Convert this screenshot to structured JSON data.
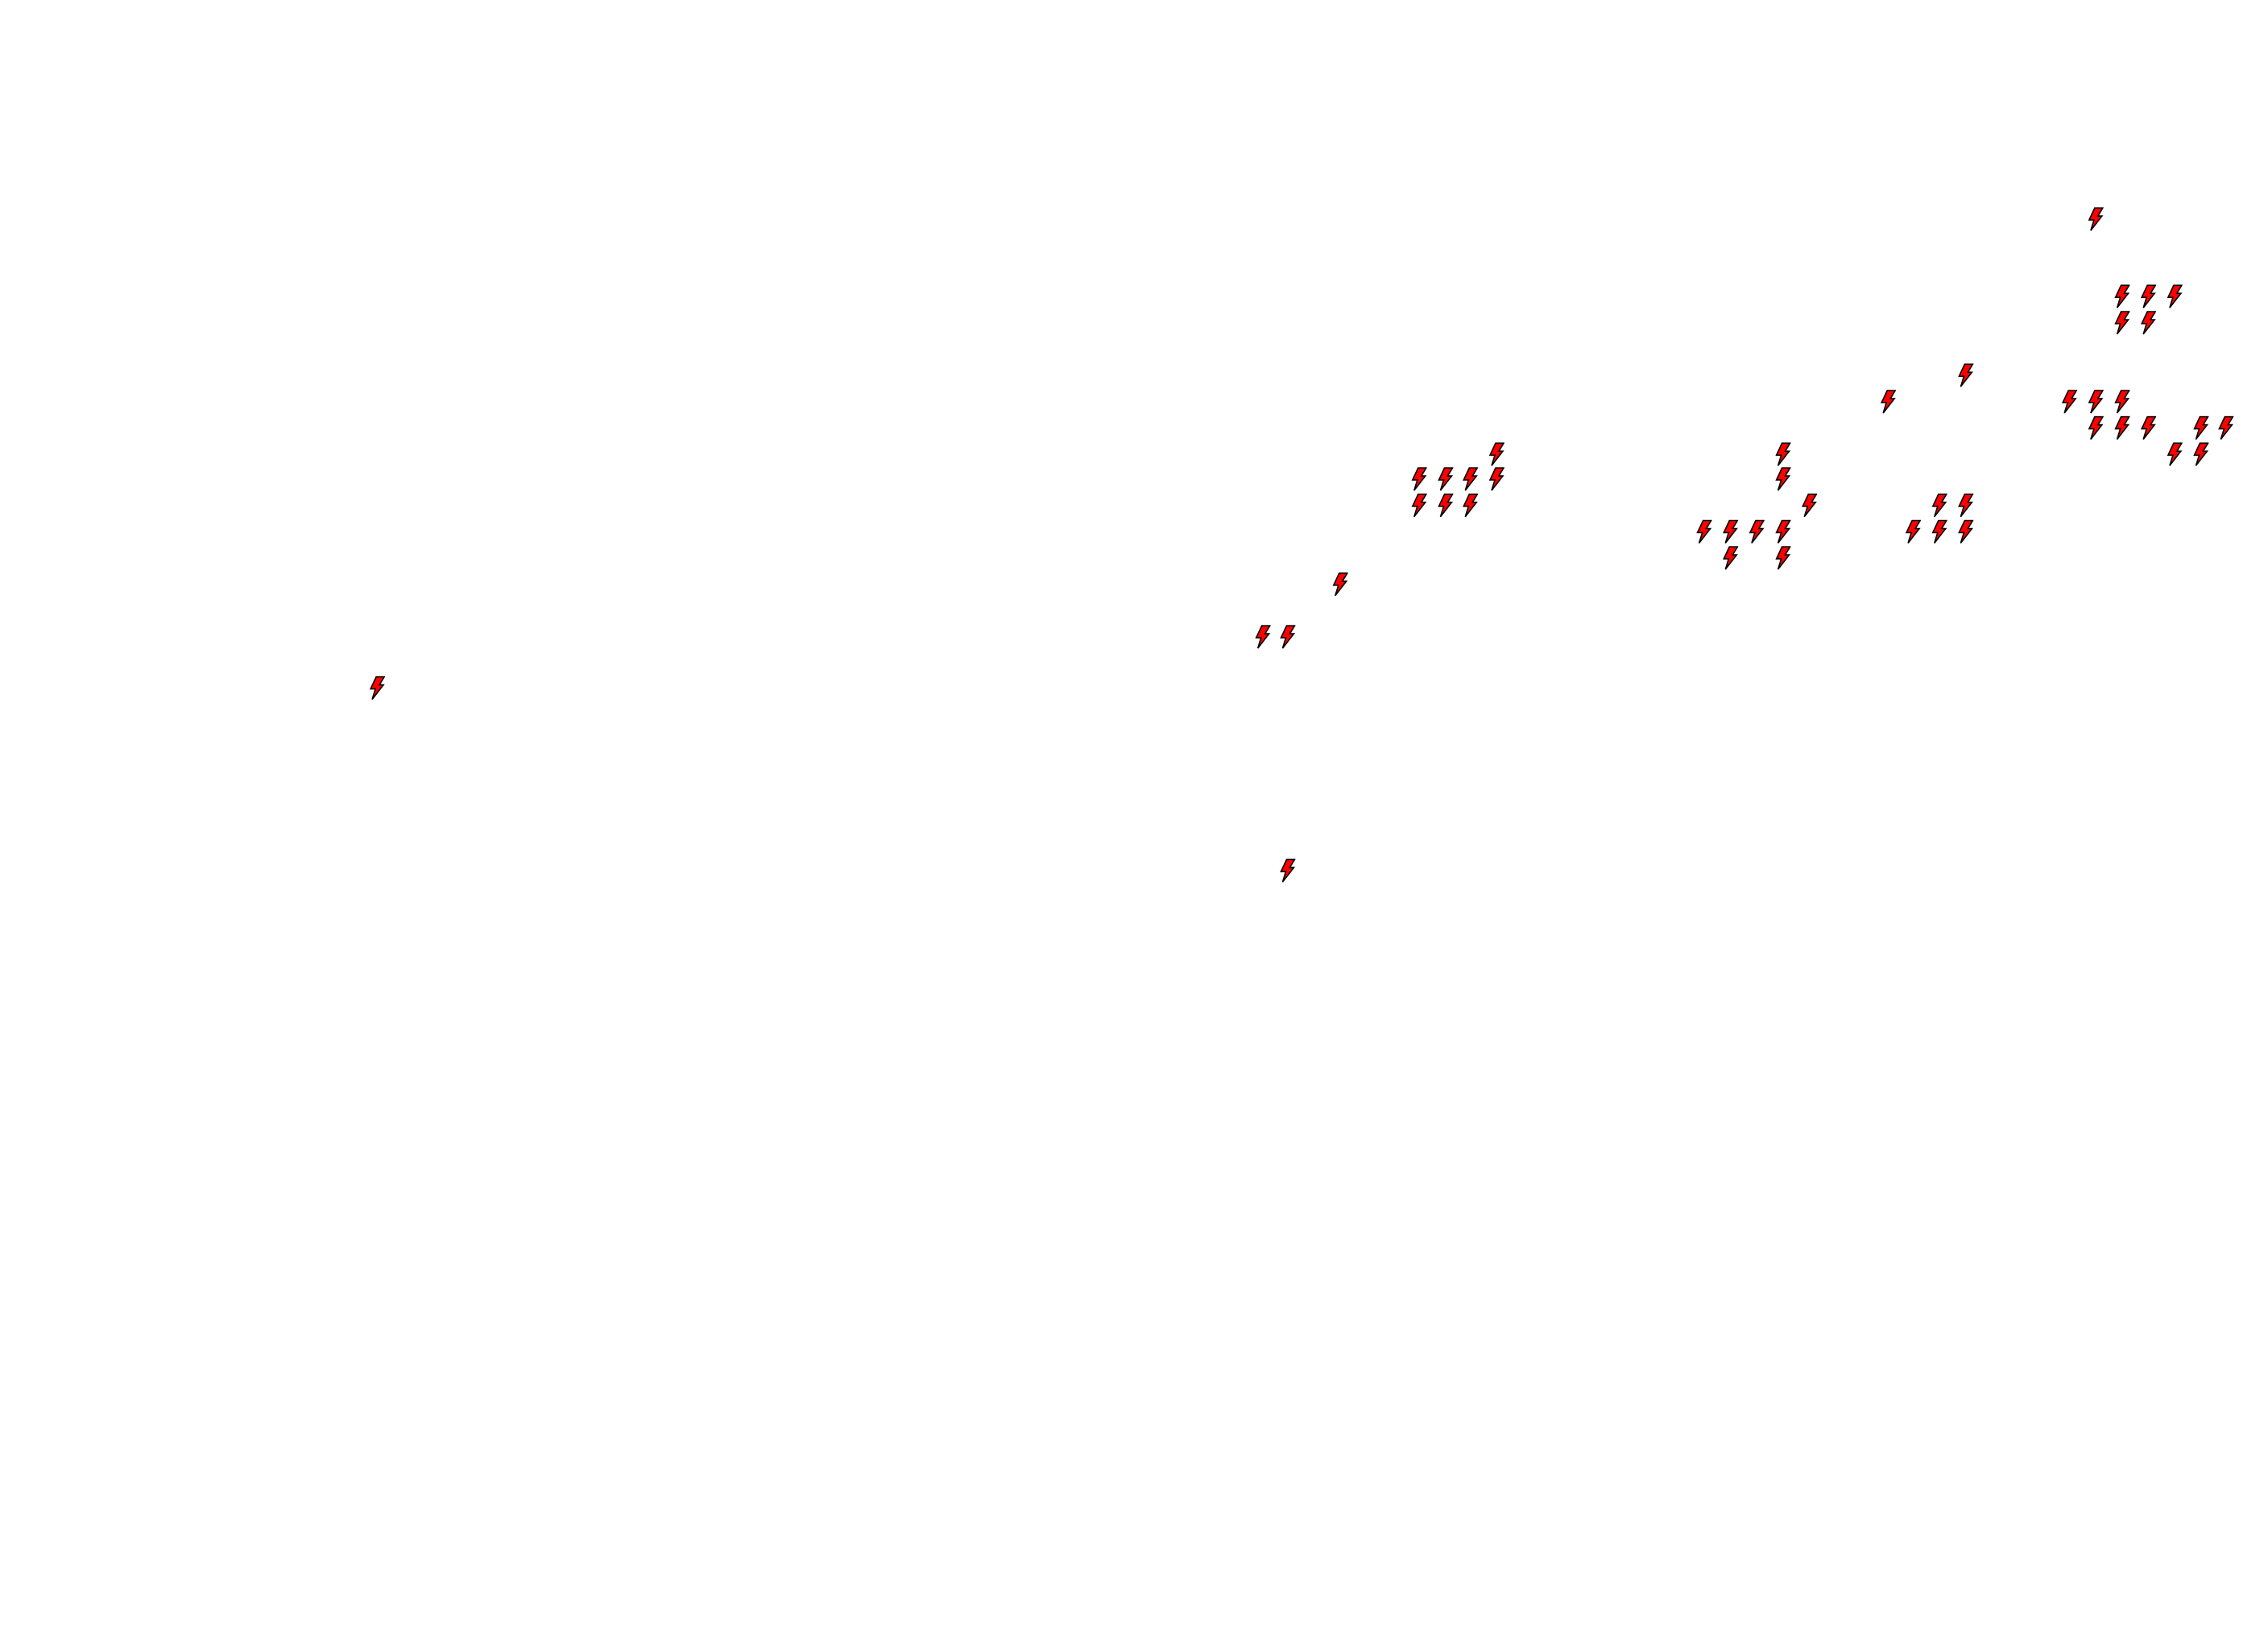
{
  "map": {
    "background_color": "#ffffff",
    "marker_icon": "lightning-bolt-icon",
    "marker_fill": "#ff0000",
    "marker_stroke": "#000000",
    "marker_count": 48
  }
}
